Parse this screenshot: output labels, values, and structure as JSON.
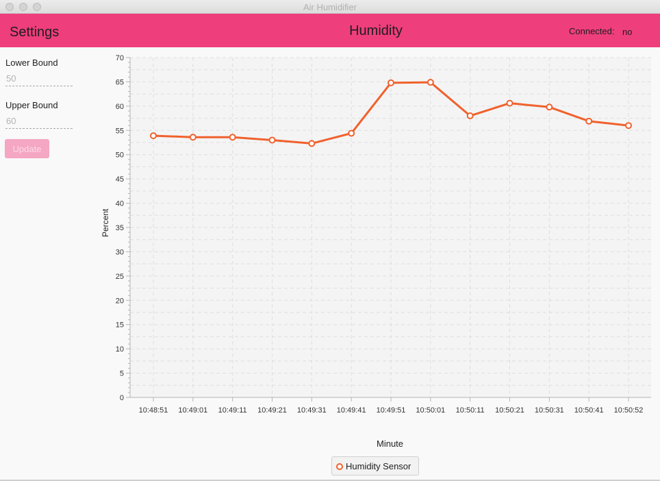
{
  "window": {
    "title": "Air Humidifier"
  },
  "header": {
    "settings_title": "Settings",
    "page_title": "Humidity",
    "connected_label": "Connected:",
    "connected_value": "no",
    "bg_color": "#ee3e7c"
  },
  "settings": {
    "lower_bound_label": "Lower Bound",
    "lower_bound_placeholder": "50",
    "upper_bound_label": "Upper Bound",
    "upper_bound_placeholder": "60",
    "update_label": "Update"
  },
  "chart_data": {
    "type": "line",
    "title": "",
    "xlabel": "Minute",
    "ylabel": "Percent",
    "ylim": [
      0,
      70
    ],
    "y_major_ticks": [
      0,
      5,
      10,
      15,
      20,
      25,
      30,
      35,
      40,
      45,
      50,
      55,
      60,
      65,
      70
    ],
    "categories": [
      "10:48:51",
      "10:49:01",
      "10:49:11",
      "10:49:21",
      "10:49:31",
      "10:49:41",
      "10:49:51",
      "10:50:01",
      "10:50:11",
      "10:50:21",
      "10:50:31",
      "10:50:41",
      "10:50:52"
    ],
    "series": [
      {
        "name": "Humidity Sensor",
        "color": "#f0612c",
        "values": [
          53.9,
          53.6,
          53.6,
          53.0,
          52.3,
          54.4,
          64.8,
          64.9,
          58.0,
          60.6,
          59.8,
          56.9,
          56.0
        ]
      }
    ],
    "grid": true,
    "legend_position": "bottom-center"
  }
}
